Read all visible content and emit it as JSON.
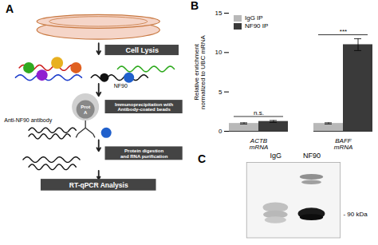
{
  "chart_data": [
    {
      "type": "diagram",
      "title": "A",
      "annotations": [
        "Cell Lysis",
        "NF90",
        "Prot\nA",
        "Immunoprecipitation with\nAntibody-coated beads",
        "Anti-NF90 antibody",
        "Protein digestion\nand RNA purification",
        "RT-qPCR Analysis"
      ]
    },
    {
      "type": "bar",
      "title": "B",
      "categories": [
        "ACTB\nmRNA",
        "BAFF\nmRNA"
      ],
      "series": [
        {
          "name": "IgG IP",
          "color": "#b8b8b8",
          "values": [
            1.0,
            1.0
          ],
          "errors": [
            0.08,
            0.08
          ]
        },
        {
          "name": "NF90 IP",
          "color": "#3a3a3a",
          "values": [
            1.25,
            11.0
          ],
          "errors": [
            0.12,
            0.75
          ]
        }
      ],
      "ylabel": "Relative enrichment\nnormalized to UBC mRNA",
      "ylim": [
        0,
        15
      ],
      "yticks": [
        0,
        5,
        10,
        15
      ],
      "legend": "upper left",
      "grid": false,
      "annotations": [
        {
          "text": "n.s.",
          "category": "ACTB\nmRNA"
        },
        {
          "text": "***",
          "category": "BAFF\nmRNA"
        }
      ]
    },
    {
      "type": "diagram",
      "title": "C",
      "categories": [
        "IgG",
        "NF90"
      ],
      "annotations": [
        "- 90 kDa"
      ]
    }
  ]
}
